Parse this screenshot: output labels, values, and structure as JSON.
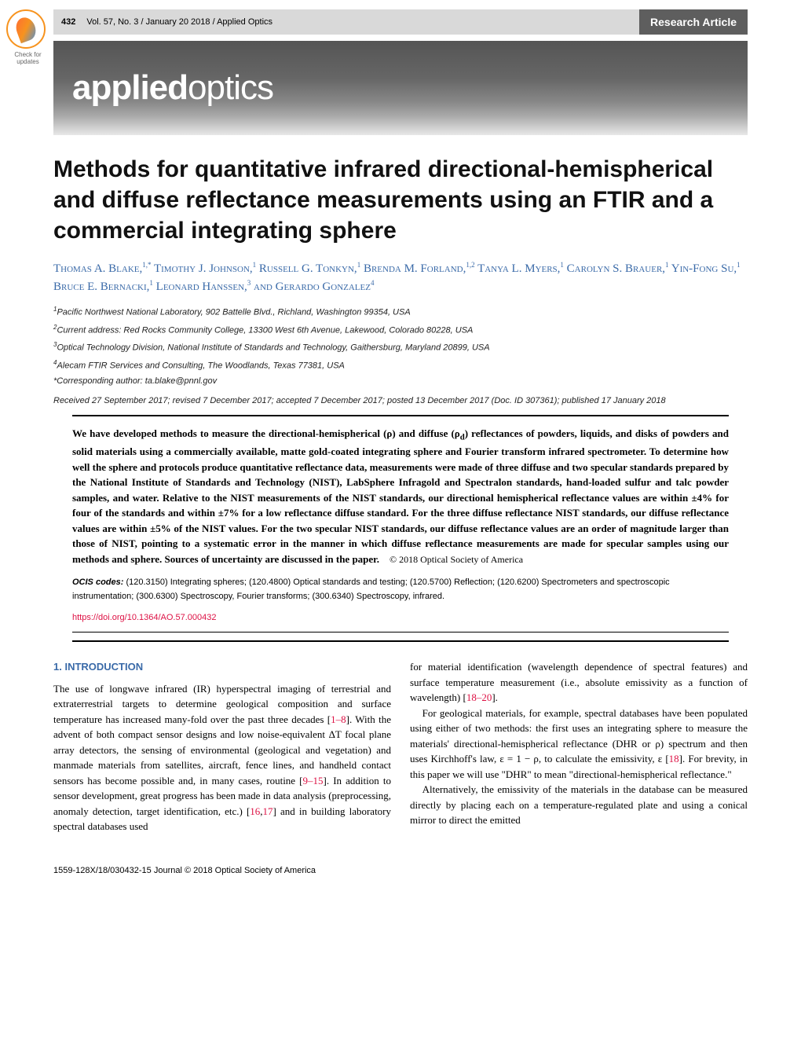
{
  "badge": {
    "text": "Check for updates"
  },
  "header": {
    "page_number": "432",
    "citation": "Vol. 57, No. 3 / January 20 2018 / Applied Optics",
    "section": "Research Article"
  },
  "banner": {
    "bold": "applied",
    "light": "optics"
  },
  "title": "Methods for quantitative infrared directional-hemispherical and diffuse reflectance measurements using an FTIR and a commercial integrating sphere",
  "authors_html": "Thomas A. Blake,<sup>1,*</sup> Timothy J. Johnson,<sup>1</sup> Russell G. Tonkyn,<sup>1</sup> Brenda M. Forland,<sup>1,2</sup> Tanya L. Myers,<sup>1</sup> Carolyn S. Brauer,<sup>1</sup> Yin-Fong Su,<sup>1</sup> Bruce E. Bernacki,<sup>1</sup> Leonard Hanssen,<sup>3</sup> and Gerardo Gonzalez<sup>4</sup>",
  "affiliations": [
    "<sup>1</sup>Pacific Northwest National Laboratory, 902 Battelle Blvd., Richland, Washington 99354, USA",
    "<sup>2</sup>Current address: Red Rocks Community College, 13300 West 6th Avenue, Lakewood, Colorado 80228, USA",
    "<sup>3</sup>Optical Technology Division, National Institute of Standards and Technology, Gaithersburg, Maryland 20899, USA",
    "<sup>4</sup>Alecam FTIR Services and Consulting, The Woodlands, Texas 77381, USA",
    "*Corresponding author: ta.blake@pnnl.gov"
  ],
  "dates": "Received 27 September 2017; revised 7 December 2017; accepted 7 December 2017; posted 13 December 2017 (Doc. ID 307361); published 17 January 2018",
  "abstract": "We have developed methods to measure the directional-hemispherical (ρ) and diffuse (ρ<sub>d</sub>) reflectances of powders, liquids, and disks of powders and solid materials using a commercially available, matte gold-coated integrating sphere and Fourier transform infrared spectrometer. To determine how well the sphere and protocols produce quantitative reflectance data, measurements were made of three diffuse and two specular standards prepared by the National Institute of Standards and Technology (NIST), LabSphere Infragold and Spectralon standards, hand-loaded sulfur and talc powder samples, and water. Relative to the NIST measurements of the NIST standards, our directional hemispherical reflectance values are within ±4% for four of the standards and within ±7% for a low reflectance diffuse standard. For the three diffuse reflectance NIST standards, our diffuse reflectance values are within ±5% of the NIST values. For the two specular NIST standards, our diffuse reflectance values are an order of magnitude larger than those of NIST, pointing to a systematic error in the manner in which diffuse reflectance measurements are made for specular samples using our methods and sphere. Sources of uncertainty are discussed in the paper.",
  "copyright": "© 2018 Optical Society of America",
  "ocis_label": "OCIS codes:",
  "ocis": "(120.3150) Integrating spheres; (120.4800) Optical standards and testing; (120.5700) Reflection; (120.6200) Spectrometers and spectroscopic instrumentation; (300.6300) Spectroscopy, Fourier transforms; (300.6340) Spectroscopy, infrared.",
  "doi": "https://doi.org/10.1364/AO.57.000432",
  "section1_head": "1. INTRODUCTION",
  "col1_p1": "The use of longwave infrared (IR) hyperspectral imaging of terrestrial and extraterrestrial targets to determine geological composition and surface temperature has increased many-fold over the past three decades [<span class='ref'>1–8</span>]. With the advent of both compact sensor designs and low noise-equivalent ΔT focal plane array detectors, the sensing of environmental (geological and vegetation) and manmade materials from satellites, aircraft, fence lines, and handheld contact sensors has become possible and, in many cases, routine [<span class='ref'>9–15</span>]. In addition to sensor development, great progress has been made in data analysis (preprocessing, anomaly detection, target identification, etc.) [<span class='ref'>16</span>,<span class='ref'>17</span>] and in building laboratory spectral databases used",
  "col2_p1": "for material identification (wavelength dependence of spectral features) and surface temperature measurement (i.e., absolute emissivity as a function of wavelength) [<span class='ref'>18–20</span>].",
  "col2_p2": "For geological materials, for example, spectral databases have been populated using either of two methods: the first uses an integrating sphere to measure the materials' directional-hemispherical reflectance (DHR or ρ) spectrum and then uses Kirchhoff's law, ε = 1 − ρ, to calculate the emissivity, ε [<span class='ref'>18</span>]. For brevity, in this paper we will use \"DHR\" to mean \"directional-hemispherical reflectance.\"",
  "col2_p3": "Alternatively, the emissivity of the materials in the database can be measured directly by placing each on a temperature-regulated plate and using a conical mirror to direct the emitted",
  "footer": "1559-128X/18/030432-15 Journal © 2018 Optical Society of America"
}
